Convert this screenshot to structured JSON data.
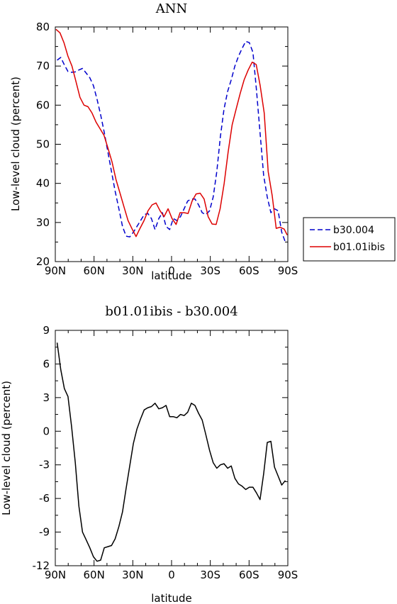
{
  "chart_data": [
    {
      "type": "line",
      "title": "ANN",
      "xlabel": "latitude",
      "ylabel": "Low-level cloud (percent)",
      "x_ticks": [
        "90N",
        "60N",
        "30N",
        "0",
        "30S",
        "60S",
        "90S"
      ],
      "y_ticks": [
        "20",
        "30",
        "40",
        "50",
        "60",
        "70",
        "80"
      ],
      "xlim": [
        -90,
        90
      ],
      "ylim": [
        20,
        80
      ],
      "legend_position": "right",
      "series": [
        {
          "name": "b30.004",
          "color": "#0000cc",
          "dash": "dashed",
          "x": [
            -88.6,
            -85.8,
            -83,
            -80.2,
            -77.4,
            -74.5,
            -71.7,
            -68.9,
            -66.1,
            -63.3,
            -60.5,
            -57.7,
            -54.9,
            -52.1,
            -49.3,
            -46.5,
            -43.7,
            -40.8,
            -38,
            -35.2,
            -32.4,
            -29.6,
            -26.8,
            -24,
            -21.2,
            -18.4,
            -15.6,
            -12.8,
            -9.9,
            -7.1,
            -4.3,
            -1.5,
            1.3,
            4.1,
            6.9,
            9.7,
            12.5,
            15.3,
            18.1,
            20.9,
            23.7,
            26.5,
            29.4,
            32.2,
            35,
            37.8,
            40.6,
            43.4,
            46.2,
            49,
            51.8,
            54.6,
            57.4,
            60.2,
            63,
            65.7,
            68.5,
            71.3,
            74.1,
            76.9,
            79.7,
            82.5,
            85.3,
            88.1
          ],
          "y": [
            71.5,
            72.2,
            70.3,
            68.6,
            68.4,
            68.5,
            69,
            69.4,
            68.2,
            67,
            65,
            61.5,
            57.5,
            53,
            48,
            43,
            38,
            33.5,
            29,
            26.5,
            26.3,
            27.5,
            29,
            30.5,
            32,
            32.3,
            31,
            28.2,
            31,
            32.5,
            29,
            28.2,
            31,
            30.5,
            31.5,
            33.5,
            35.5,
            36,
            36,
            34.5,
            32.5,
            32,
            33,
            36.5,
            43,
            52,
            59,
            63.5,
            66.5,
            70,
            72.5,
            74.5,
            76.3,
            76,
            73.5,
            64,
            53,
            42,
            36.5,
            32.5,
            33.5,
            33,
            27.5,
            25
          ]
        },
        {
          "name": "b01.01ibis",
          "color": "#dd0000",
          "dash": "solid",
          "x": [
            -89.5,
            -86.4,
            -83.3,
            -80.2,
            -77.1,
            -74,
            -70.9,
            -67.8,
            -64.7,
            -61.6,
            -58.5,
            -55.4,
            -52.3,
            -49.2,
            -46.1,
            -43,
            -39.9,
            -36.8,
            -33.7,
            -30.6,
            -27.5,
            -24.4,
            -21.3,
            -18.2,
            -15.1,
            -12,
            -8.9,
            -5.8,
            -2.7,
            0.4,
            3.5,
            6.6,
            9.7,
            12.8,
            15.9,
            19,
            22.1,
            25.2,
            28.3,
            31.4,
            34.5,
            37.6,
            40.7,
            43.8,
            46.9,
            50,
            53.1,
            56.2,
            59.3,
            62.4,
            65.5,
            68.6,
            71.7,
            74.8,
            77.9,
            81,
            84.1,
            87.2,
            89.5
          ],
          "y": [
            79.4,
            78.5,
            76,
            72.5,
            70,
            66,
            62,
            60,
            59.6,
            58,
            55.7,
            54,
            52.3,
            49,
            45.5,
            41,
            37.5,
            34,
            30.5,
            28.4,
            26.4,
            28.5,
            30.5,
            33,
            34.5,
            35,
            33,
            31.5,
            33.5,
            31,
            29.5,
            32.5,
            32.5,
            32.3,
            35.5,
            37.3,
            37.5,
            36,
            31.5,
            29.6,
            29.5,
            33.5,
            40,
            48,
            55,
            59,
            63,
            66.5,
            69,
            71,
            70.4,
            65,
            58,
            43,
            36.8,
            28.5,
            28.8,
            28.3,
            26.8
          ]
        }
      ]
    },
    {
      "type": "line",
      "title": "b01.01ibis - b30.004",
      "xlabel": "latitude",
      "ylabel": "Low-level cloud (percent)",
      "x_ticks": [
        "90N",
        "60N",
        "30N",
        "0",
        "30S",
        "60S",
        "90S"
      ],
      "y_ticks": [
        "-12",
        "-9",
        "-6",
        "-3",
        "0",
        "3",
        "6",
        "9"
      ],
      "xlim": [
        -90,
        90
      ],
      "ylim": [
        -12,
        9
      ],
      "series": [
        {
          "color": "#000000",
          "dash": "solid",
          "x": [
            -88.6,
            -85.8,
            -83,
            -80.2,
            -77.4,
            -74.5,
            -71.7,
            -68.9,
            -66.1,
            -63.3,
            -60.5,
            -57.7,
            -54.9,
            -52.1,
            -49.3,
            -46.5,
            -43.7,
            -40.8,
            -38,
            -35.2,
            -32.4,
            -29.6,
            -26.8,
            -24,
            -21.2,
            -18.4,
            -15.6,
            -12.8,
            -9.9,
            -7.1,
            -4.3,
            -1.5,
            1.3,
            4.1,
            6.9,
            9.7,
            12.5,
            15.3,
            18.1,
            20.9,
            23.7,
            26.5,
            29.4,
            32.2,
            35,
            37.8,
            40.6,
            43.4,
            46.2,
            49,
            51.8,
            54.6,
            57.4,
            60.2,
            63,
            65.7,
            68.5,
            71.3,
            74.1,
            76.9,
            79.7,
            82.5,
            85.3,
            88.1
          ],
          "y": [
            7.9,
            5.5,
            3.8,
            3.1,
            0.4,
            -2.8,
            -6.7,
            -9,
            -9.7,
            -10.4,
            -11.2,
            -11.6,
            -11.5,
            -10.4,
            -10.3,
            -10.2,
            -9.6,
            -8.5,
            -7.2,
            -5.1,
            -3.1,
            -1.1,
            0.2,
            1.1,
            1.9,
            2.1,
            2.2,
            2.5,
            2,
            2.1,
            2.3,
            1.3,
            1.3,
            1.2,
            1.5,
            1.4,
            1.7,
            2.5,
            2.3,
            1.6,
            1,
            -0.3,
            -1.7,
            -2.8,
            -3.3,
            -3,
            -2.9,
            -3.3,
            -3.1,
            -4.2,
            -4.7,
            -4.9,
            -5.2,
            -5,
            -5,
            -5.5,
            -6.1,
            -3.8,
            -1,
            -0.9,
            -3.2,
            -4,
            -4.8,
            -4.4
          ]
        }
      ]
    }
  ]
}
